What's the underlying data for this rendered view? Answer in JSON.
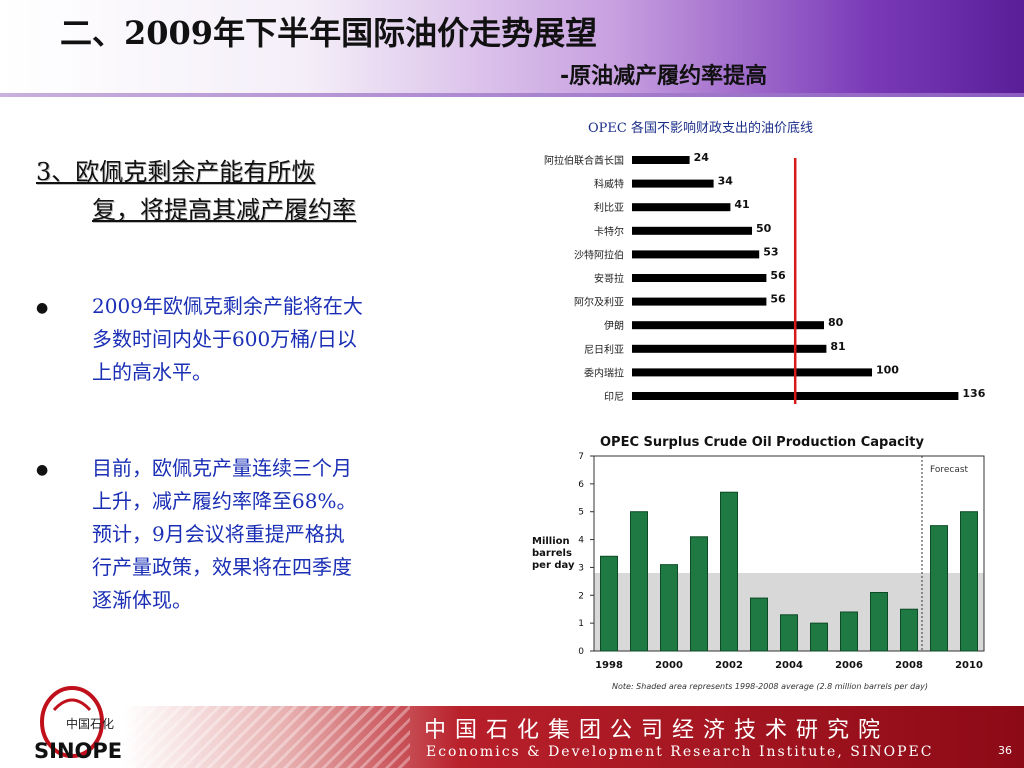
{
  "header": {
    "title": "二、2009年下半年国际油价走势展望",
    "subtitle": "-原油减产履约率提高"
  },
  "content": {
    "heading_line1": " 3、欧佩克剩余产能有所恢",
    "heading_line2": "复，将提高其减产履约率",
    "bullets": [
      {
        "lines": [
          "2009年欧佩克剩余产能将在大",
          "多数时间内处于600万桶/日以",
          "上的高水平。"
        ]
      },
      {
        "lines": [
          "目前，欧佩克产量连续三个月",
          "上升，减产履约率降至68%。",
          "预计，9月会议将重提严格执",
          "行产量政策，效果将在四季度",
          "逐渐体现。"
        ]
      }
    ]
  },
  "chart_data": [
    {
      "type": "bar",
      "orientation": "horizontal",
      "title": "OPEC 各国不影响财政支出的油价底线",
      "categories": [
        "阿拉伯联合酋长国",
        "科威特",
        "利比亚",
        "卡特尔",
        "沙特阿拉伯",
        "安哥拉",
        "阿尔及利亚",
        "伊朗",
        "尼日利亚",
        "委内瑞拉",
        "印尼"
      ],
      "values": [
        24,
        34,
        41,
        50,
        53,
        56,
        56,
        80,
        81,
        100,
        136
      ],
      "reference_line": 68,
      "bar_color": "#000000",
      "reference_color": "#d61a1a"
    },
    {
      "type": "bar",
      "title": "OPEC Surplus Crude Oil Production Capacity",
      "ylabel": "Million barrels per day",
      "categories": [
        "1998",
        "1999",
        "2000",
        "2001",
        "2002",
        "2003",
        "2004",
        "2005",
        "2006",
        "2007",
        "2008",
        "2009",
        "2010"
      ],
      "x_tick_labels": [
        "1998",
        "2000",
        "2002",
        "2004",
        "2006",
        "2008",
        "2010"
      ],
      "values": [
        3.4,
        5.0,
        3.1,
        4.1,
        5.7,
        1.9,
        1.3,
        1.0,
        1.4,
        2.1,
        1.5,
        4.5,
        5.0
      ],
      "ylim": [
        0,
        7
      ],
      "y_ticks": [
        "0",
        "1",
        "2",
        "3",
        "4",
        "5",
        "6",
        "7"
      ],
      "shaded_average": 2.8,
      "forecast_label": "Forecast",
      "forecast_from": "2009",
      "note": "Note: Shaded area represents 1998-2008 average (2.8 million barrels per day)",
      "bar_color": "#1e7a42"
    }
  ],
  "footer": {
    "cn": "中国石化集团公司经济技术研究院",
    "en": "Economics & Development Research Institute, SINOPEC",
    "page": "36"
  },
  "logo": {
    "text": "SINOPEC",
    "mark_text": "中国石化"
  }
}
